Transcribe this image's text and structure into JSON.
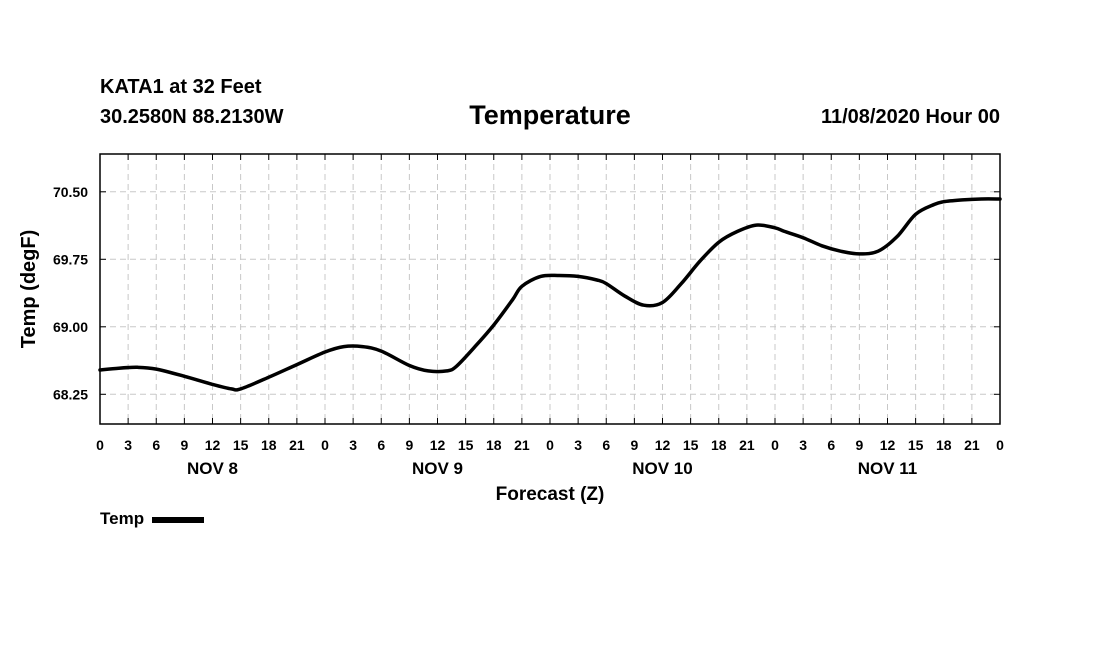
{
  "header": {
    "station": "KATA1 at 32 Feet",
    "coords": "30.2580N 88.2130W",
    "title": "Temperature",
    "timestamp": "11/08/2020 Hour 00"
  },
  "legend": {
    "label": "Temp",
    "color": "#000000"
  },
  "chart_data": {
    "type": "line",
    "title": "Temperature",
    "xlabel": "Forecast (Z)",
    "ylabel": "Temp (degF)",
    "ylim": [
      67.92,
      70.92
    ],
    "xlim": [
      0,
      96
    ],
    "yticks": [
      68.25,
      69.0,
      69.75,
      70.5
    ],
    "ytick_labels": [
      "68.25",
      "69.00",
      "69.75",
      "70.50"
    ],
    "xticks": [
      0,
      3,
      6,
      9,
      12,
      15,
      18,
      21,
      24,
      27,
      30,
      33,
      36,
      39,
      42,
      45,
      48,
      51,
      54,
      57,
      60,
      63,
      66,
      69,
      72,
      75,
      78,
      81,
      84,
      87,
      90,
      93,
      96
    ],
    "xtick_labels": [
      "0",
      "3",
      "6",
      "9",
      "12",
      "15",
      "18",
      "21",
      "0",
      "3",
      "6",
      "9",
      "12",
      "15",
      "18",
      "21",
      "0",
      "3",
      "6",
      "9",
      "12",
      "15",
      "18",
      "21",
      "0",
      "3",
      "6",
      "9",
      "12",
      "15",
      "18",
      "21",
      "0"
    ],
    "day_labels": [
      {
        "label": "NOV 8",
        "x": 12
      },
      {
        "label": "NOV 9",
        "x": 36
      },
      {
        "label": "NOV 10",
        "x": 60
      },
      {
        "label": "NOV 11",
        "x": 84
      }
    ],
    "grid": true,
    "series": [
      {
        "name": "Temp",
        "x": [
          0,
          2,
          4,
          6,
          9,
          12,
          14,
          15,
          18,
          21,
          24,
          26,
          28,
          30,
          33,
          35,
          37,
          38,
          40,
          42,
          44,
          45,
          47,
          49,
          51,
          53,
          54,
          56,
          58,
          60,
          62,
          64,
          66,
          68,
          70,
          72,
          73,
          75,
          77,
          79,
          81,
          83,
          85,
          87,
          89,
          90,
          92,
          94,
          96
        ],
        "y": [
          68.52,
          68.54,
          68.55,
          68.53,
          68.45,
          68.36,
          68.31,
          68.31,
          68.44,
          68.58,
          68.72,
          68.78,
          68.78,
          68.73,
          68.57,
          68.51,
          68.51,
          68.56,
          68.78,
          69.02,
          69.3,
          69.45,
          69.56,
          69.57,
          69.56,
          69.52,
          69.48,
          69.34,
          69.24,
          69.27,
          69.48,
          69.73,
          69.94,
          70.06,
          70.13,
          70.1,
          70.06,
          69.99,
          69.9,
          69.84,
          69.81,
          69.84,
          70.0,
          70.25,
          70.36,
          70.39,
          70.41,
          70.42,
          70.42
        ]
      }
    ]
  }
}
